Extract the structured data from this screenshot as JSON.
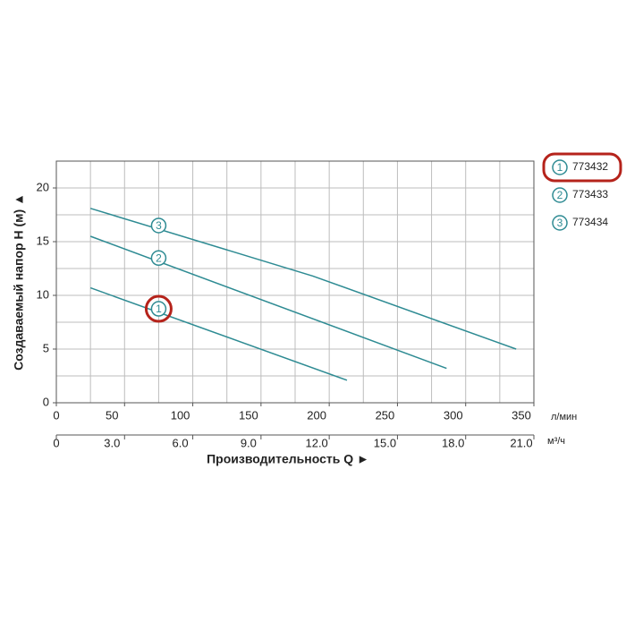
{
  "chart_data": {
    "type": "line",
    "y_label": "Создаваемый напор H (м) ▲",
    "x_label": "Производительность Q ►",
    "x_unit": "л/мин",
    "x2_unit": "м³/ч",
    "xlim": [
      0,
      350
    ],
    "ylim": [
      0,
      22.5
    ],
    "xticks": [
      0,
      50,
      100,
      150,
      200,
      250,
      300,
      350
    ],
    "yticks": [
      0,
      5,
      10,
      15,
      20
    ],
    "x2lim": [
      0,
      21
    ],
    "x2ticks": [
      0,
      {
        "value": 3,
        "label": "3.0"
      },
      {
        "value": 6,
        "label": "6.0"
      },
      {
        "value": 9,
        "label": "9.0"
      },
      {
        "value": 12,
        "label": "12.0"
      },
      {
        "value": 15,
        "label": "15.0"
      },
      {
        "value": 18,
        "label": "18.0"
      },
      {
        "value": 21,
        "label": "21.0"
      }
    ],
    "x_grid": [
      0,
      25,
      50,
      75,
      100,
      125,
      150,
      175,
      200,
      225,
      250,
      275,
      300,
      325,
      350
    ],
    "y_grid": [
      0,
      2.5,
      5,
      7.5,
      10,
      12.5,
      15,
      17.5,
      20,
      22.5
    ],
    "grid": true,
    "color": "#2e8b93",
    "highlight_color": "#b5231b",
    "series": [
      {
        "name": "773432",
        "marker": "1",
        "highlighted": true,
        "x": [
          25,
          213
        ],
        "values": [
          10.7,
          2.1
        ]
      },
      {
        "name": "773433",
        "marker": "2",
        "highlighted": false,
        "x": [
          25,
          286
        ],
        "values": [
          15.5,
          3.2
        ]
      },
      {
        "name": "773434",
        "marker": "3",
        "highlighted": false,
        "x": [
          25,
          188,
          337
        ],
        "values": [
          18.1,
          11.8,
          5.0
        ]
      }
    ]
  }
}
